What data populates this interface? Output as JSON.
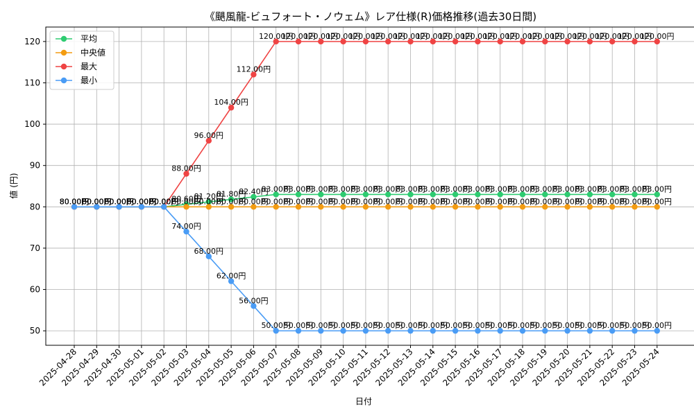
{
  "chart_data": {
    "type": "line",
    "title": "《颶風龍-ビュフォート・ノウェム》レア仕様(R)価格推移(過去30日間)",
    "xlabel": "日付",
    "ylabel": "値 (円)",
    "ylim": [
      46.5,
      123.5
    ],
    "yticks": [
      50,
      60,
      70,
      80,
      90,
      100,
      110,
      120
    ],
    "grid": true,
    "legend_position": "top-left",
    "label_suffix": "円",
    "categories": [
      "2025-04-28",
      "2025-04-29",
      "2025-04-30",
      "2025-05-01",
      "2025-05-02",
      "2025-05-03",
      "2025-05-04",
      "2025-05-05",
      "2025-05-06",
      "2025-05-07",
      "2025-05-08",
      "2025-05-09",
      "2025-05-10",
      "2025-05-11",
      "2025-05-12",
      "2025-05-13",
      "2025-05-14",
      "2025-05-15",
      "2025-05-16",
      "2025-05-17",
      "2025-05-18",
      "2025-05-19",
      "2025-05-20",
      "2025-05-21",
      "2025-05-22",
      "2025-05-23",
      "2025-05-24"
    ],
    "series": [
      {
        "name": "平均",
        "color": "#2ecc71",
        "values": [
          80,
          80,
          80,
          80,
          80,
          80.6,
          81.2,
          81.8,
          82.4,
          83,
          83,
          83,
          83,
          83,
          83,
          83,
          83,
          83,
          83,
          83,
          83,
          83,
          83,
          83,
          83,
          83,
          83
        ]
      },
      {
        "name": "中央値",
        "color": "#f39c12",
        "values": [
          80,
          80,
          80,
          80,
          80,
          80,
          80,
          80,
          80,
          80,
          80,
          80,
          80,
          80,
          80,
          80,
          80,
          80,
          80,
          80,
          80,
          80,
          80,
          80,
          80,
          80,
          80
        ]
      },
      {
        "name": "最大",
        "color": "#ef4444",
        "values": [
          80,
          80,
          80,
          80,
          80,
          88,
          96,
          104,
          112,
          120,
          120,
          120,
          120,
          120,
          120,
          120,
          120,
          120,
          120,
          120,
          120,
          120,
          120,
          120,
          120,
          120,
          120
        ]
      },
      {
        "name": "最小",
        "color": "#4a9cf5",
        "values": [
          80,
          80,
          80,
          80,
          80,
          74,
          68,
          62,
          56,
          50,
          50,
          50,
          50,
          50,
          50,
          50,
          50,
          50,
          50,
          50,
          50,
          50,
          50,
          50,
          50,
          50,
          50
        ]
      }
    ]
  }
}
